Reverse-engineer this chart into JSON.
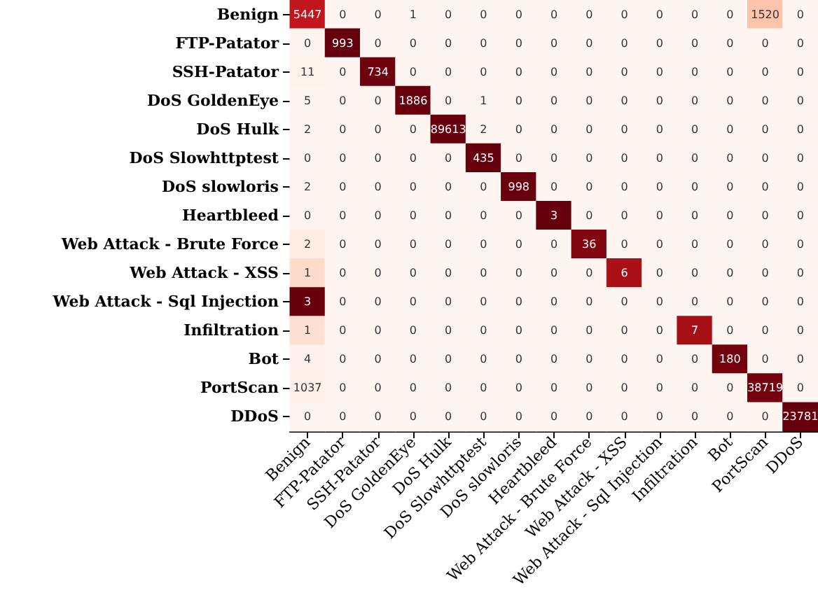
{
  "chart_data": {
    "type": "heatmap",
    "data_labels": true,
    "categories": [
      "Benign",
      "FTP-Patator",
      "SSH-Patator",
      "DoS GoldenEye",
      "DoS Hulk",
      "DoS Slowhttptest",
      "DoS slowloris",
      "Heartbleed",
      "Web Attack - Brute Force",
      "Web Attack - XSS",
      "Web Attack - Sql Injection",
      "Infiltration",
      "Bot",
      "PortScan",
      "DDoS"
    ],
    "y_categories": [
      "Benign",
      "FTP-Patator",
      "SSH-Patator",
      "DoS GoldenEye",
      "DoS Hulk",
      "DoS Slowhttptest",
      "DoS slowloris",
      "Heartbleed",
      "Web Attack - Brute Force",
      "Web Attack - XSS",
      "Web Attack - Sql Injection",
      "Infiltration",
      "Bot",
      "PortScan",
      "DDoS"
    ],
    "cells": [
      [
        5447,
        0,
        0,
        1,
        0,
        0,
        0,
        0,
        0,
        0,
        0,
        0,
        0,
        1520,
        0
      ],
      [
        0,
        993,
        0,
        0,
        0,
        0,
        0,
        0,
        0,
        0,
        0,
        0,
        0,
        0,
        0
      ],
      [
        11,
        0,
        734,
        0,
        0,
        0,
        0,
        0,
        0,
        0,
        0,
        0,
        0,
        0,
        0
      ],
      [
        5,
        0,
        0,
        1886,
        0,
        1,
        0,
        0,
        0,
        0,
        0,
        0,
        0,
        0,
        0
      ],
      [
        2,
        0,
        0,
        0,
        89613,
        2,
        0,
        0,
        0,
        0,
        0,
        0,
        0,
        0,
        0
      ],
      [
        0,
        0,
        0,
        0,
        0,
        435,
        0,
        0,
        0,
        0,
        0,
        0,
        0,
        0,
        0
      ],
      [
        2,
        0,
        0,
        0,
        0,
        0,
        998,
        0,
        0,
        0,
        0,
        0,
        0,
        0,
        0
      ],
      [
        0,
        0,
        0,
        0,
        0,
        0,
        0,
        3,
        0,
        0,
        0,
        0,
        0,
        0,
        0
      ],
      [
        2,
        0,
        0,
        0,
        0,
        0,
        0,
        0,
        36,
        0,
        0,
        0,
        0,
        0,
        0
      ],
      [
        1,
        0,
        0,
        0,
        0,
        0,
        0,
        0,
        0,
        6,
        0,
        0,
        0,
        0,
        0
      ],
      [
        3,
        0,
        0,
        0,
        0,
        0,
        0,
        0,
        0,
        0,
        0,
        0,
        0,
        0,
        0
      ],
      [
        1,
        0,
        0,
        0,
        0,
        0,
        0,
        0,
        0,
        0,
        0,
        7,
        0,
        0,
        0
      ],
      [
        4,
        0,
        0,
        0,
        0,
        0,
        0,
        0,
        0,
        0,
        0,
        0,
        180,
        0,
        0
      ],
      [
        1037,
        0,
        0,
        0,
        0,
        0,
        0,
        0,
        0,
        0,
        0,
        0,
        0,
        38719,
        0
      ],
      [
        0,
        0,
        0,
        0,
        0,
        0,
        0,
        0,
        0,
        0,
        0,
        0,
        0,
        0,
        23781
      ]
    ]
  }
}
